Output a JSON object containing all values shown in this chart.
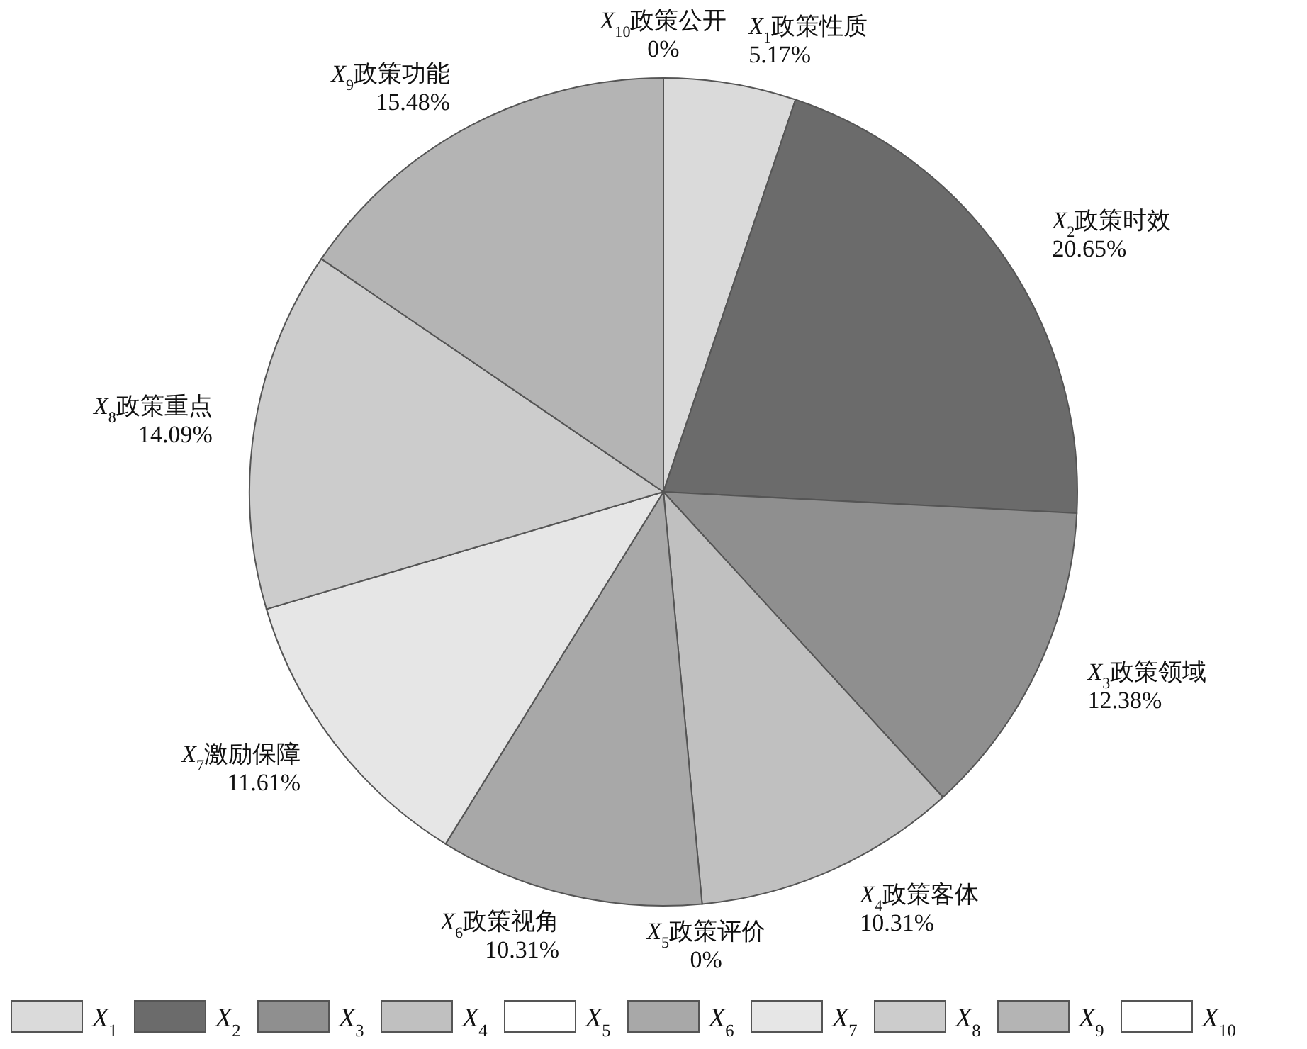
{
  "chart_data": {
    "type": "pie",
    "categories": [
      "*X*$_{1}$",
      "*X*$_{2}$",
      "*X*$_{3}$",
      "*X*$_{4}$",
      "*X*$_{5}$",
      "*X*$_{6}$",
      "*X*$_{7}$",
      "*X*$_{8}$",
      "*X*$_{9}$",
      "*X*$_{10}$"
    ],
    "values": [
      5.17,
      20.65,
      12.38,
      10.31,
      0,
      10.31,
      11.61,
      14.09,
      15.48,
      0
    ],
    "value_labels": [
      "5.17%",
      "20.65%",
      "12.38%",
      "10.31%",
      "0%",
      "10.31%",
      "11.61%",
      "14.09%",
      "15.48%",
      "0%"
    ],
    "colors": [
      "#dadada",
      "#6b6b6b",
      "#8f8f8f",
      "#c0c0c0",
      "#ffffff",
      "#a8a8a8",
      "#e6e6e6",
      "#cccccc",
      "#b4b4b4",
      "#ffffff"
    ],
    "annotations": [
      {
        "text": "*X*$_{1}$政策性质",
        "x": "*X*$_{1}$"
      },
      {
        "text": "*X*$_{2}$政策时效",
        "x": "*X*$_{2}$"
      },
      {
        "text": "*X*$_{3}$政策领域",
        "x": "*X*$_{3}$"
      },
      {
        "text": "*X*$_{4}$政策客体",
        "x": "*X*$_{4}$"
      },
      {
        "text": "*X*$_{5}$政策评价",
        "x": "*X*$_{5}$"
      },
      {
        "text": "*X*$_{6}$政策视角",
        "x": "*X*$_{6}$"
      },
      {
        "text": "*X*$_{7}$激励保障",
        "x": "*X*$_{7}$"
      },
      {
        "text": "*X*$_{8}$政策重点",
        "x": "*X*$_{8}$"
      },
      {
        "text": "*X*$_{9}$政策功能",
        "x": "*X*$_{9}$"
      },
      {
        "text": "*X*$_{10}$政策公开",
        "x": "*X*$_{10}$"
      }
    ],
    "legend": "bottom"
  }
}
